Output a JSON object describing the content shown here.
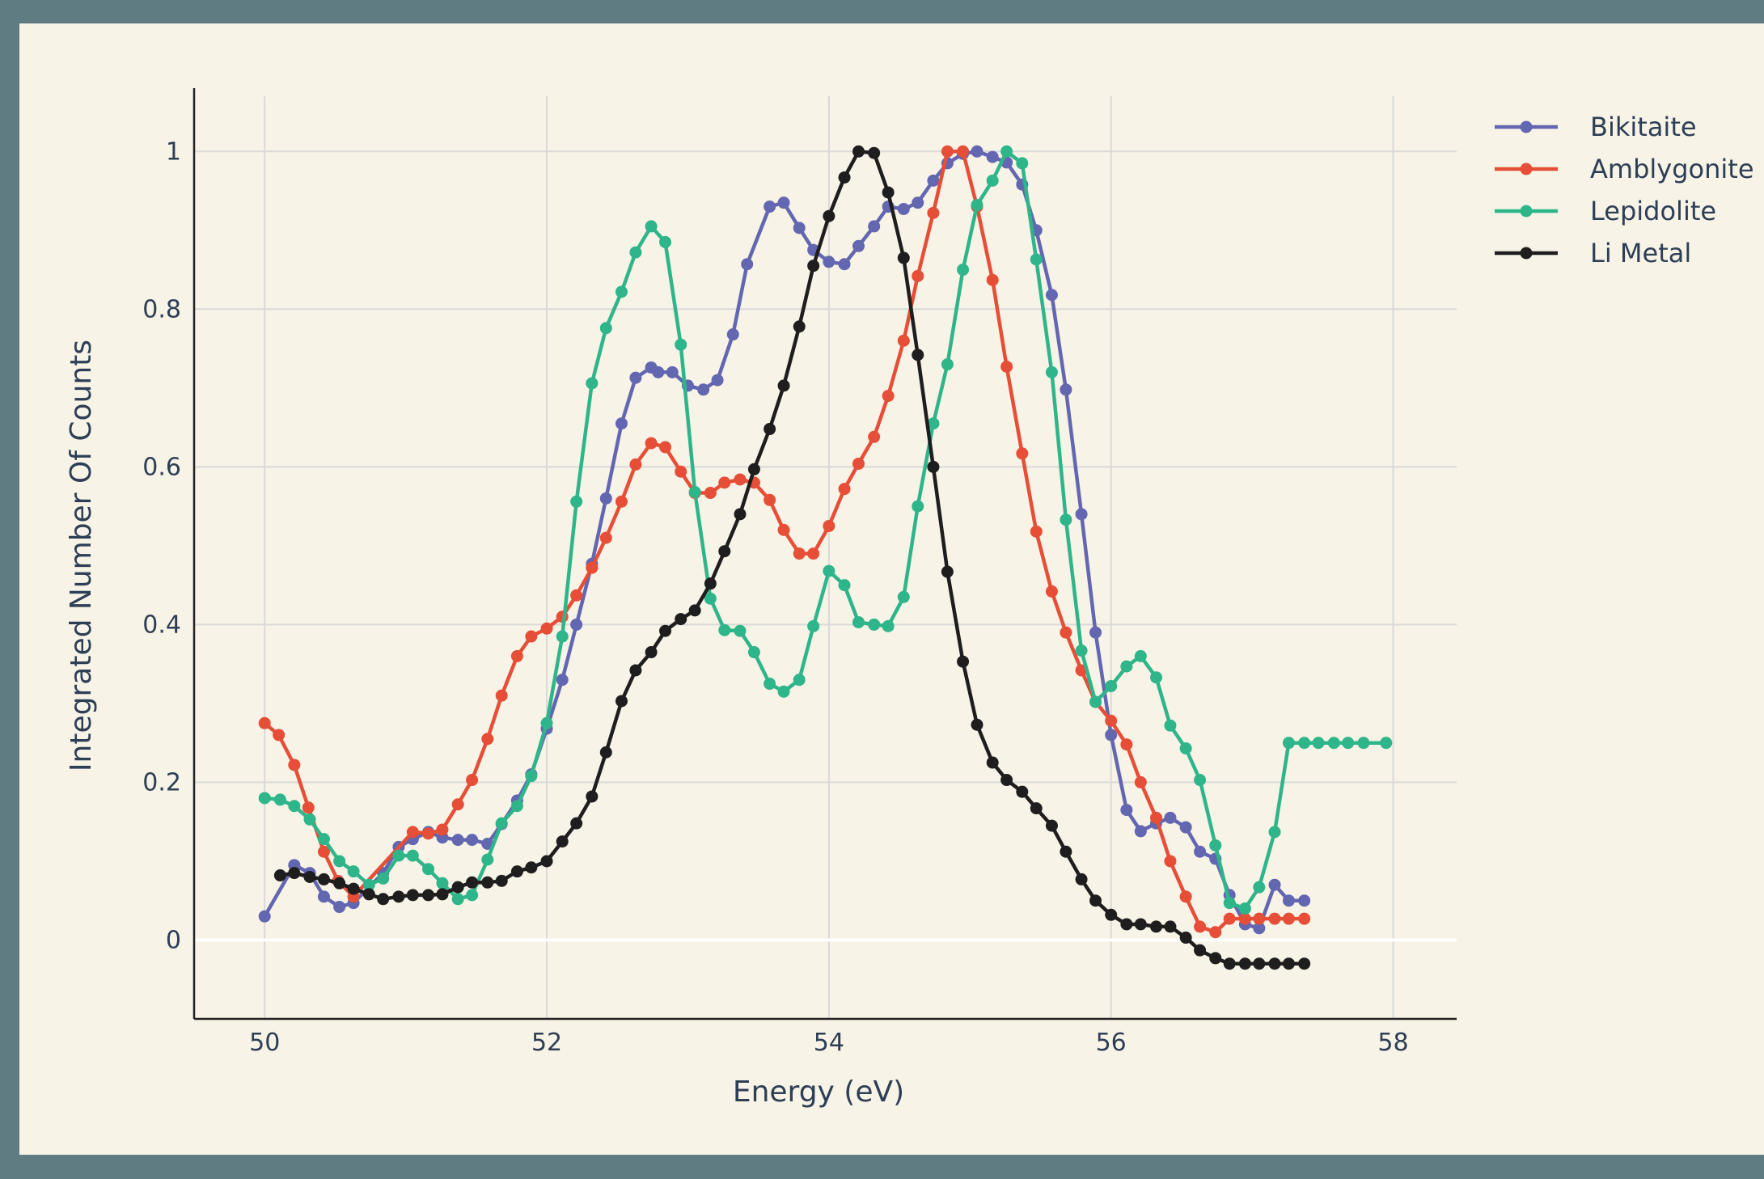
{
  "chart_data": {
    "type": "line",
    "xlabel": "Energy (eV)",
    "ylabel": "Integrated Number Of Counts",
    "xlim": [
      49.5,
      58.45
    ],
    "ylim": [
      -0.1,
      1.07
    ],
    "xticks": [
      50,
      52,
      54,
      56,
      58
    ],
    "xtick_labels": [
      "50",
      "52",
      "54",
      "56",
      "58"
    ],
    "yticks": [
      0,
      0.2,
      0.4,
      0.6,
      0.8,
      1
    ],
    "ytick_labels": [
      "0",
      "0.2",
      "0.4",
      "0.6",
      "0.8",
      "1"
    ],
    "grid": true,
    "legend_position": "top-right",
    "series": [
      {
        "name": "Bikitaite",
        "color": "#6366b0",
        "x": [
          50.0,
          50.21,
          50.32,
          50.42,
          50.53,
          50.63,
          50.84,
          50.95,
          51.05,
          51.16,
          51.26,
          51.37,
          51.47,
          51.58,
          51.68,
          51.79,
          51.89,
          52.0,
          52.11,
          52.21,
          52.32,
          52.42,
          52.53,
          52.63,
          52.74,
          52.79,
          52.89,
          53.0,
          53.11,
          53.21,
          53.32,
          53.42,
          53.58,
          53.68,
          53.79,
          53.89,
          54.0,
          54.11,
          54.21,
          54.32,
          54.42,
          54.53,
          54.63,
          54.74,
          54.84,
          54.95,
          55.05,
          55.16,
          55.26,
          55.37,
          55.47,
          55.58,
          55.68,
          55.79,
          55.89,
          56.0,
          56.11,
          56.21,
          56.32,
          56.42,
          56.53,
          56.63,
          56.74,
          56.84,
          56.95,
          57.05,
          57.16,
          57.26,
          57.37
        ],
        "y": [
          0.03,
          0.095,
          0.085,
          0.055,
          0.042,
          0.047,
          0.085,
          0.118,
          0.128,
          0.137,
          0.13,
          0.127,
          0.127,
          0.122,
          0.147,
          0.177,
          0.21,
          0.268,
          0.33,
          0.4,
          0.477,
          0.56,
          0.655,
          0.713,
          0.726,
          0.72,
          0.72,
          0.703,
          0.698,
          0.71,
          0.768,
          0.857,
          0.93,
          0.935,
          0.903,
          0.875,
          0.86,
          0.857,
          0.88,
          0.905,
          0.93,
          0.927,
          0.935,
          0.963,
          0.985,
          0.997,
          1.0,
          0.993,
          0.986,
          0.958,
          0.9,
          0.818,
          0.698,
          0.54,
          0.39,
          0.26,
          0.165,
          0.138,
          0.148,
          0.155,
          0.143,
          0.112,
          0.103,
          0.057,
          0.02,
          0.015,
          0.07,
          0.05,
          0.05
        ]
      },
      {
        "name": "Amblygonite",
        "color": "#e64e37",
        "x": [
          50.0,
          50.1,
          50.21,
          50.31,
          50.42,
          50.52,
          50.63,
          51.05,
          51.16,
          51.26,
          51.37,
          51.47,
          51.58,
          51.68,
          51.79,
          51.89,
          52.0,
          52.11,
          52.21,
          52.32,
          52.42,
          52.53,
          52.63,
          52.74,
          52.84,
          52.95,
          53.05,
          53.16,
          53.26,
          53.37,
          53.47,
          53.58,
          53.68,
          53.79,
          53.89,
          54.0,
          54.11,
          54.21,
          54.32,
          54.42,
          54.53,
          54.63,
          54.74,
          54.84,
          54.95,
          55.05,
          55.16,
          55.26,
          55.37,
          55.47,
          55.58,
          55.68,
          55.79,
          55.89,
          56.0,
          56.11,
          56.21,
          56.32,
          56.42,
          56.53,
          56.63,
          56.74,
          56.84,
          56.95,
          57.05,
          57.16,
          57.26,
          57.37
        ],
        "y": [
          0.275,
          0.26,
          0.222,
          0.168,
          0.112,
          0.075,
          0.055,
          0.137,
          0.135,
          0.14,
          0.172,
          0.203,
          0.255,
          0.31,
          0.36,
          0.385,
          0.395,
          0.41,
          0.437,
          0.472,
          0.51,
          0.556,
          0.603,
          0.63,
          0.625,
          0.594,
          0.567,
          0.567,
          0.58,
          0.584,
          0.58,
          0.558,
          0.52,
          0.49,
          0.49,
          0.525,
          0.572,
          0.604,
          0.638,
          0.69,
          0.76,
          0.842,
          0.922,
          1.0,
          1.0,
          0.93,
          0.837,
          0.727,
          0.617,
          0.518,
          0.442,
          0.39,
          0.342,
          0.302,
          0.278,
          0.248,
          0.2,
          0.155,
          0.1,
          0.055,
          0.017,
          0.01,
          0.027,
          0.027,
          0.027,
          0.027,
          0.027,
          0.027
        ]
      },
      {
        "name": "Lepidolite",
        "color": "#2fb58a",
        "x": [
          50.0,
          50.11,
          50.21,
          50.32,
          50.42,
          50.53,
          50.63,
          50.74,
          50.84,
          50.95,
          51.05,
          51.16,
          51.26,
          51.37,
          51.47,
          51.58,
          51.68,
          51.79,
          51.89,
          52.0,
          52.11,
          52.21,
          52.32,
          52.42,
          52.53,
          52.63,
          52.74,
          52.84,
          52.95,
          53.05,
          53.16,
          53.26,
          53.37,
          53.47,
          53.58,
          53.68,
          53.79,
          53.89,
          54.0,
          54.11,
          54.21,
          54.32,
          54.42,
          54.53,
          54.63,
          54.74,
          54.84,
          54.95,
          55.05,
          55.16,
          55.26,
          55.37,
          55.47,
          55.58,
          55.68,
          55.79,
          55.89,
          56.0,
          56.11,
          56.21,
          56.32,
          56.42,
          56.53,
          56.63,
          56.74,
          56.84,
          56.95,
          57.05,
          57.16,
          57.26,
          57.37,
          57.47,
          57.58,
          57.68,
          57.79,
          57.95
        ],
        "y": [
          0.18,
          0.178,
          0.17,
          0.153,
          0.128,
          0.1,
          0.087,
          0.07,
          0.078,
          0.107,
          0.107,
          0.09,
          0.072,
          0.052,
          0.057,
          0.102,
          0.148,
          0.17,
          0.208,
          0.275,
          0.385,
          0.556,
          0.706,
          0.776,
          0.822,
          0.872,
          0.905,
          0.885,
          0.755,
          0.568,
          0.433,
          0.393,
          0.392,
          0.365,
          0.325,
          0.315,
          0.33,
          0.398,
          0.468,
          0.45,
          0.403,
          0.4,
          0.398,
          0.435,
          0.55,
          0.655,
          0.73,
          0.85,
          0.932,
          0.963,
          1.0,
          0.985,
          0.863,
          0.72,
          0.533,
          0.367,
          0.302,
          0.322,
          0.347,
          0.36,
          0.333,
          0.272,
          0.243,
          0.203,
          0.12,
          0.047,
          0.04,
          0.067,
          0.137,
          0.25,
          0.25,
          0.25,
          0.25,
          0.25,
          0.25,
          0.25
        ]
      },
      {
        "name": "Li Metal",
        "color": "#1e1e1e",
        "x": [
          50.11,
          50.21,
          50.32,
          50.42,
          50.53,
          50.63,
          50.74,
          50.84,
          50.95,
          51.05,
          51.16,
          51.26,
          51.37,
          51.47,
          51.58,
          51.68,
          51.79,
          51.89,
          52.0,
          52.11,
          52.21,
          52.32,
          52.42,
          52.53,
          52.63,
          52.74,
          52.84,
          52.95,
          53.05,
          53.16,
          53.26,
          53.37,
          53.47,
          53.58,
          53.68,
          53.79,
          53.89,
          54.0,
          54.11,
          54.21,
          54.32,
          54.42,
          54.53,
          54.63,
          54.74,
          54.84,
          54.95,
          55.05,
          55.16,
          55.26,
          55.37,
          55.47,
          55.58,
          55.68,
          55.79,
          55.89,
          56.0,
          56.11,
          56.21,
          56.32,
          56.42,
          56.53,
          56.63,
          56.74,
          56.84,
          56.95,
          57.05,
          57.16,
          57.26,
          57.37
        ],
        "y": [
          0.082,
          0.085,
          0.08,
          0.077,
          0.072,
          0.065,
          0.058,
          0.052,
          0.055,
          0.057,
          0.057,
          0.058,
          0.067,
          0.073,
          0.073,
          0.075,
          0.087,
          0.092,
          0.1,
          0.125,
          0.148,
          0.182,
          0.238,
          0.303,
          0.342,
          0.365,
          0.392,
          0.407,
          0.418,
          0.452,
          0.493,
          0.54,
          0.597,
          0.648,
          0.703,
          0.778,
          0.855,
          0.918,
          0.967,
          1.0,
          0.998,
          0.948,
          0.865,
          0.742,
          0.6,
          0.467,
          0.353,
          0.273,
          0.225,
          0.203,
          0.188,
          0.167,
          0.145,
          0.112,
          0.077,
          0.05,
          0.032,
          0.02,
          0.02,
          0.017,
          0.017,
          0.003,
          -0.013,
          -0.023,
          -0.03,
          -0.03,
          -0.03,
          -0.03,
          -0.03,
          -0.03
        ]
      }
    ]
  }
}
